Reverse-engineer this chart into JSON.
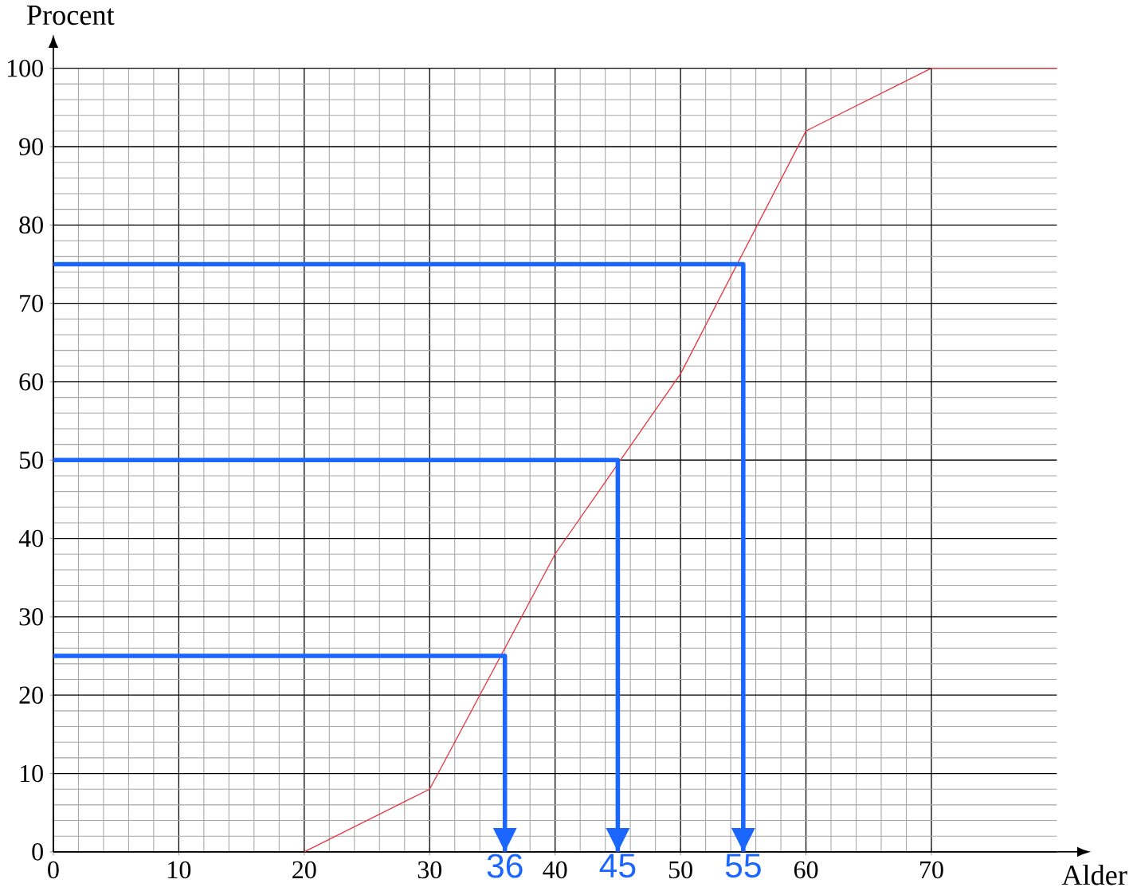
{
  "chart_data": {
    "type": "line",
    "xlabel": "Alder",
    "ylabel": "Procent",
    "xlim": [
      0,
      80
    ],
    "ylim": [
      0,
      100
    ],
    "xticks": [
      0,
      10,
      20,
      30,
      40,
      50,
      60,
      70
    ],
    "yticks": [
      0,
      10,
      20,
      30,
      40,
      50,
      60,
      70,
      80,
      90,
      100
    ],
    "grid": true,
    "marker": "none",
    "line_style": "solid",
    "series": [
      {
        "color": "#e8323c",
        "x": [
          20,
          30,
          40,
          50,
          60,
          70,
          80
        ],
        "values": [
          0,
          8,
          38,
          61,
          92,
          100,
          100
        ]
      },
      {
        "color": "#1a66ff",
        "x": [
          0,
          36,
          36
        ],
        "values": [
          25,
          25,
          0
        ]
      },
      {
        "color": "#1a66ff",
        "x": [
          0,
          45,
          45
        ],
        "values": [
          50,
          50,
          0
        ]
      },
      {
        "color": "#1a66ff",
        "x": [
          0,
          55,
          55
        ],
        "values": [
          75,
          75,
          0
        ]
      }
    ],
    "annotations": [
      {
        "text": "36",
        "x": 36,
        "y": 0
      },
      {
        "text": "45",
        "x": 45,
        "y": 0
      },
      {
        "text": "55",
        "x": 55,
        "y": 0
      }
    ]
  }
}
